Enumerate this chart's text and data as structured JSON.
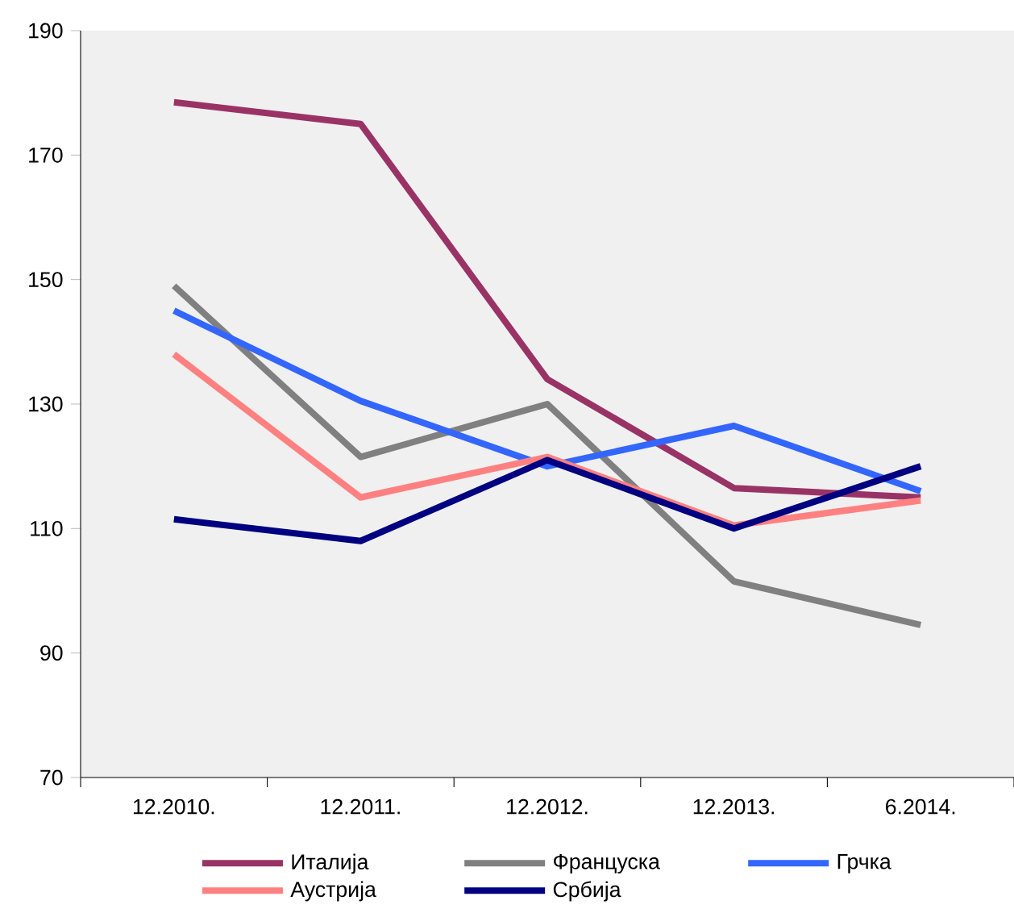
{
  "chart_data": {
    "type": "line",
    "categories": [
      "12.2010.",
      "12.2011.",
      "12.2012.",
      "12.2013.",
      "6.2014."
    ],
    "series": [
      {
        "name": "Италија",
        "color": "#993366",
        "values": [
          178.5,
          175,
          134,
          116.5,
          115
        ]
      },
      {
        "name": "Француска",
        "color": "#808080",
        "values": [
          149,
          121.5,
          130,
          101.5,
          94.5
        ]
      },
      {
        "name": "Грчка",
        "color": "#3366ff",
        "values": [
          145,
          130.5,
          120,
          126.5,
          116
        ]
      },
      {
        "name": "Аустрија",
        "color": "#ff8080",
        "values": [
          138,
          115,
          121.5,
          110.5,
          114.5
        ]
      },
      {
        "name": "Србија",
        "color": "#000080",
        "values": [
          111.5,
          108,
          121,
          110,
          120
        ]
      }
    ],
    "ylim": [
      70,
      190
    ],
    "yticks": [
      70,
      90,
      110,
      130,
      150,
      170,
      190
    ],
    "grid": false,
    "legend": "bottom",
    "marker": "none",
    "line_style": "solid"
  }
}
